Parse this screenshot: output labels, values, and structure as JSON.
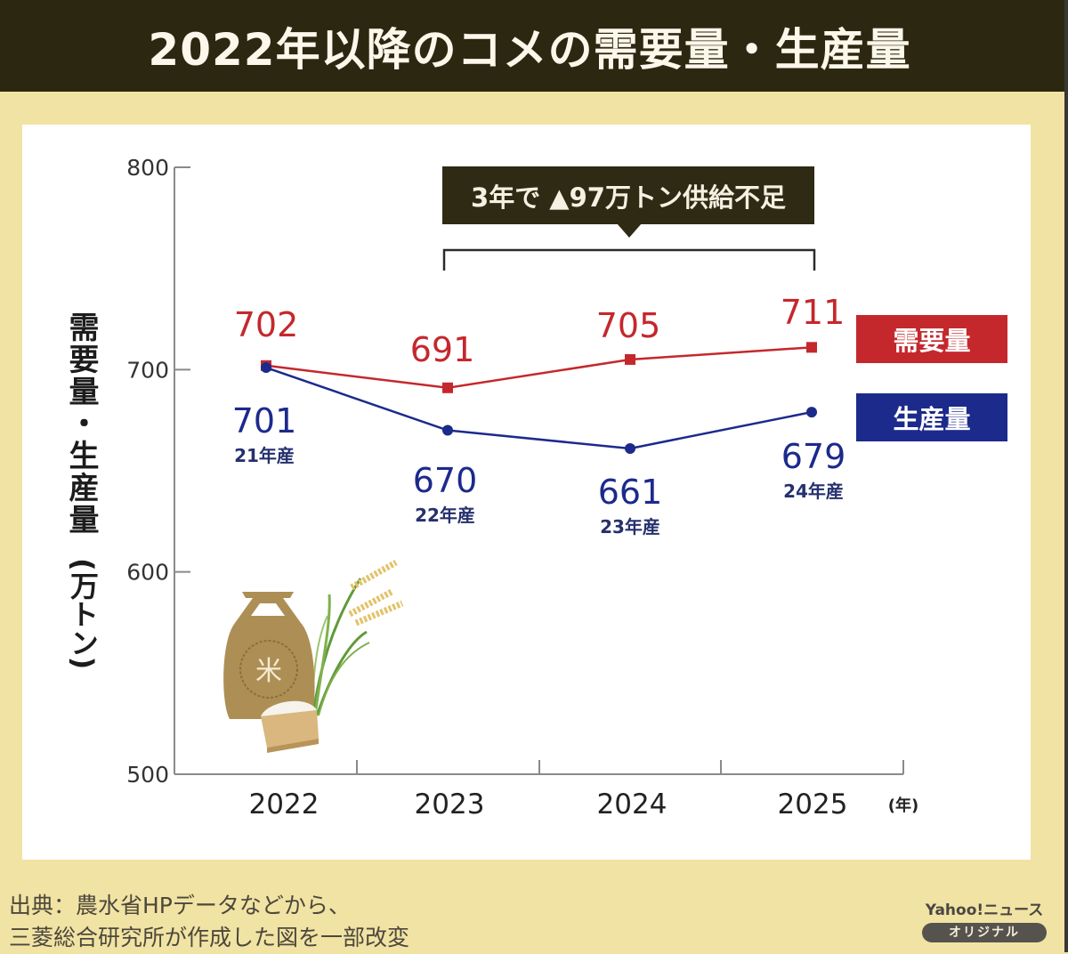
{
  "header": {
    "title": "2022年以降のコメの需要量・生産量"
  },
  "colors": {
    "demand": "#c4282d",
    "supply": "#1c2a8c",
    "header_bg": "#2c2711",
    "page_bg": "#f1e3a4"
  },
  "chart_data": {
    "type": "line",
    "title": "2022年以降のコメの需要量・生産量",
    "xlabel": "(年)",
    "ylabel": "需要量・生産量",
    "ylabel_unit": "(万トン)",
    "categories": [
      "2022",
      "2023",
      "2024",
      "2025"
    ],
    "ylim": [
      500,
      800
    ],
    "yticks": [
      "800",
      "700",
      "600",
      "500"
    ],
    "ytick_values": [
      800,
      700,
      600,
      500
    ],
    "grid": false,
    "legend_placement": "right",
    "series": [
      {
        "name": "需要量",
        "marker": "square",
        "values": [
          702,
          691,
          705,
          711
        ],
        "labels": [
          "702",
          "691",
          "705",
          "711"
        ]
      },
      {
        "name": "生産量",
        "marker": "circle",
        "values": [
          701,
          670,
          661,
          679
        ],
        "labels": [
          "701",
          "670",
          "661",
          "679"
        ],
        "sublabels": [
          "21年産",
          "22年産",
          "23年産",
          "24年産"
        ]
      }
    ],
    "annotation": {
      "text": "3年で ▲97万トン供給不足",
      "span": [
        "2023",
        "2025"
      ]
    }
  },
  "footer": {
    "source_line1": "出典：農水省HPデータなどから、",
    "source_line2": "三菱総合研究所が作成した図を一部改変",
    "brand_name": "Yahoo!ニュース",
    "brand_badge": "オリジナル"
  },
  "illustration": {
    "bag_label": "米"
  }
}
